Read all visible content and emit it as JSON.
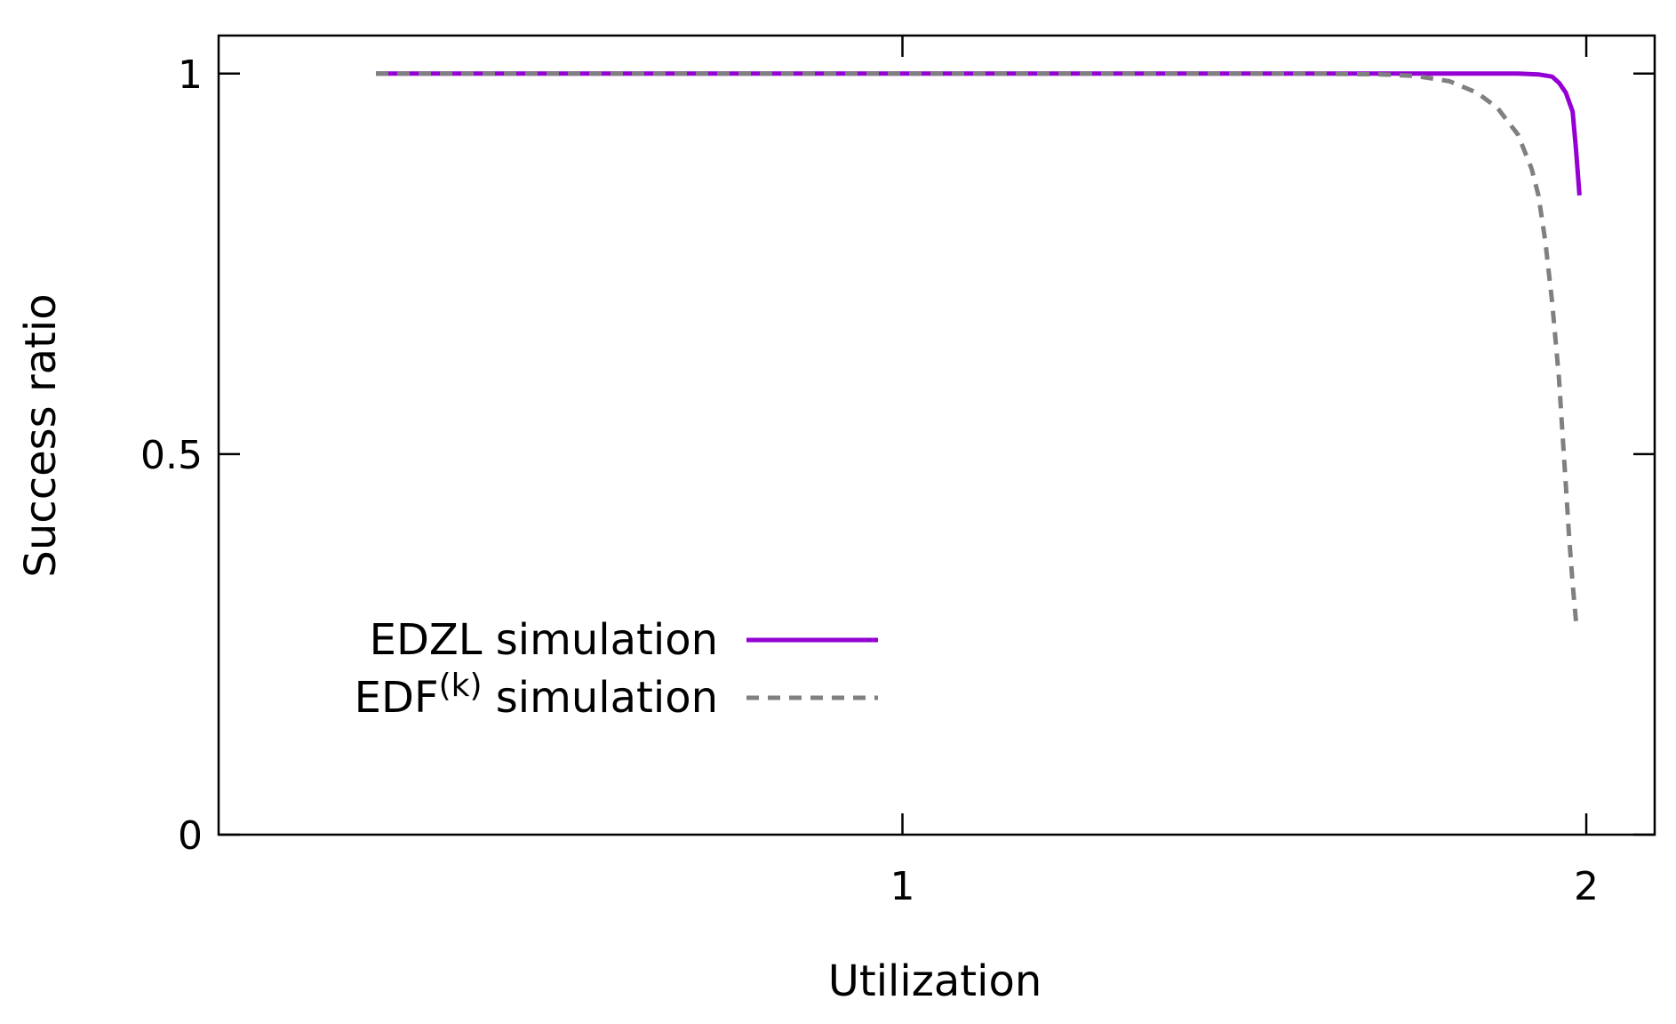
{
  "chart_data": {
    "type": "line",
    "title": "",
    "xlabel": "Utilization",
    "ylabel": "Success ratio",
    "xlim": [
      0.0,
      2.1
    ],
    "ylim": [
      0,
      1.05
    ],
    "x_ticks": [
      {
        "value": 1,
        "label": "1"
      },
      {
        "value": 2,
        "label": "2"
      }
    ],
    "y_ticks": [
      {
        "value": 0,
        "label": "0"
      },
      {
        "value": 0.5,
        "label": "0.5"
      },
      {
        "value": 1,
        "label": "1"
      }
    ],
    "grid": false,
    "legend_position": "bottom-left",
    "series": [
      {
        "name": "EDZL simulation",
        "label_main": "EDZL simulation",
        "label_sup": "",
        "label_rest": "",
        "color": "#9400d3",
        "dash": "solid",
        "x": [
          0.23,
          0.4,
          0.6,
          0.8,
          1.0,
          1.2,
          1.4,
          1.6,
          1.75,
          1.85,
          1.9,
          1.93,
          1.95,
          1.96,
          1.97,
          1.98,
          1.985,
          1.99
        ],
        "y": [
          1.0,
          1.0,
          1.0,
          1.0,
          1.0,
          1.0,
          1.0,
          1.0,
          1.0,
          1.0,
          1.0,
          0.999,
          0.996,
          0.988,
          0.975,
          0.95,
          0.9,
          0.84
        ]
      },
      {
        "name": "EDF(k) simulation",
        "label_main": "EDF",
        "label_sup": "(k)",
        "label_rest": " simulation",
        "color": "#808080",
        "dash": "dashed",
        "x": [
          0.23,
          0.4,
          0.6,
          0.8,
          1.0,
          1.2,
          1.4,
          1.6,
          1.7,
          1.75,
          1.8,
          1.84,
          1.87,
          1.9,
          1.92,
          1.93,
          1.94,
          1.95,
          1.96,
          1.965,
          1.97,
          1.975,
          1.98,
          1.985
        ],
        "y": [
          1.0,
          1.0,
          1.0,
          1.0,
          1.0,
          1.0,
          1.0,
          1.0,
          0.999,
          0.997,
          0.99,
          0.975,
          0.955,
          0.92,
          0.875,
          0.84,
          0.78,
          0.7,
          0.6,
          0.53,
          0.46,
          0.39,
          0.33,
          0.28
        ]
      }
    ]
  }
}
